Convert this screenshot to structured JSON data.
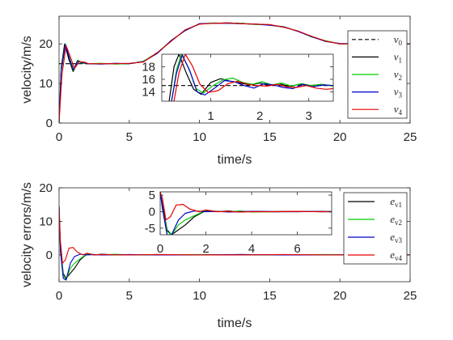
{
  "colors": {
    "v0": "#000000",
    "v1": "#000000",
    "v2": "#00cc00",
    "v3": "#0000cc",
    "v4": "#e60000",
    "axis": "#262626",
    "grid": "#d9d9d9"
  },
  "chart_data": [
    {
      "id": "velocity",
      "type": "line",
      "xlabel": "time/s",
      "ylabel": "velocity/m/s",
      "xlim": [
        0,
        25
      ],
      "ylim": [
        0,
        27
      ],
      "xticks": [
        "0",
        "5",
        "10",
        "15",
        "20",
        "25"
      ],
      "yticks": [
        "0",
        "10",
        "20"
      ],
      "legend_position": "right",
      "legend": [
        {
          "name": "v",
          "sub": "0",
          "style": "dashed"
        },
        {
          "name": "v",
          "sub": "1"
        },
        {
          "name": "v",
          "sub": "2"
        },
        {
          "name": "v",
          "sub": "3"
        },
        {
          "name": "v",
          "sub": "4"
        }
      ],
      "series": [
        {
          "key": "v0",
          "style": "dashed",
          "x": [
            0,
            0.2,
            0.5,
            0.8,
            1,
            1.5,
            2,
            3,
            4,
            5,
            6,
            7,
            8,
            9,
            10,
            11,
            12,
            13,
            14,
            15,
            16,
            17,
            18,
            19,
            20,
            21,
            22,
            23,
            24,
            25
          ],
          "y": [
            15,
            15,
            15,
            15,
            15,
            15,
            15,
            15,
            15,
            15,
            15.6,
            17.8,
            20.8,
            23.5,
            25,
            25.2,
            25.3,
            25.2,
            25,
            24.8,
            24.3,
            23.2,
            21.8,
            20.7,
            20,
            20,
            20,
            20,
            20,
            20
          ]
        },
        {
          "key": "v1",
          "x": [
            0,
            0.15,
            0.4,
            0.7,
            1,
            1.3,
            1.6,
            2,
            3,
            4,
            5,
            6,
            7,
            8,
            9,
            10,
            11,
            12,
            13,
            14,
            15,
            16,
            17,
            18,
            19,
            20,
            21,
            22,
            23,
            24,
            25
          ],
          "y": [
            0,
            14,
            20,
            16,
            13,
            15.8,
            15.2,
            15,
            15,
            15,
            15,
            15.5,
            17.7,
            20.9,
            23.4,
            25.1,
            25.2,
            25.3,
            25.1,
            25,
            24.8,
            24.3,
            23.2,
            21.8,
            20.7,
            20,
            20.1,
            20,
            20,
            20,
            20
          ]
        },
        {
          "key": "v2",
          "x": [
            0,
            0.15,
            0.45,
            0.75,
            1.05,
            1.35,
            1.7,
            2,
            3,
            4,
            5,
            6,
            7,
            8,
            9,
            10,
            11,
            12,
            13,
            14,
            15,
            16,
            17,
            18,
            19,
            20,
            21,
            22,
            23,
            24,
            25
          ],
          "y": [
            0,
            13.5,
            20,
            16.5,
            13.2,
            15.9,
            15.1,
            15,
            15.1,
            14.9,
            15,
            15.6,
            17.8,
            20.8,
            23.5,
            25,
            25.3,
            25.2,
            25.2,
            24.9,
            24.8,
            24.2,
            23.3,
            21.7,
            20.8,
            20,
            20,
            20.1,
            20,
            20,
            20
          ]
        },
        {
          "key": "v3",
          "x": [
            0,
            0.15,
            0.45,
            0.75,
            1.05,
            1.35,
            1.7,
            2,
            3,
            4,
            5,
            6,
            7,
            8,
            9,
            10,
            11,
            12,
            13,
            14,
            15,
            16,
            17,
            18,
            19,
            20,
            21,
            22,
            23,
            24,
            25
          ],
          "y": [
            0,
            13,
            19.8,
            16.2,
            13.4,
            15.6,
            15.3,
            15,
            14.9,
            15.1,
            15,
            15.5,
            17.6,
            20.9,
            23.4,
            25.1,
            25.2,
            25.2,
            25.1,
            25,
            24.7,
            24.3,
            23.2,
            21.8,
            20.6,
            20.1,
            20,
            20,
            20.1,
            20,
            20
          ]
        },
        {
          "key": "v4",
          "x": [
            0,
            0.2,
            0.5,
            0.8,
            1.1,
            1.45,
            1.8,
            2.1,
            3,
            4,
            5,
            6,
            7,
            8,
            9,
            10,
            11,
            12,
            13,
            14,
            15,
            16,
            17,
            18,
            19,
            20,
            21,
            22,
            23,
            24,
            25
          ],
          "y": [
            0,
            12,
            19.6,
            16.8,
            13.8,
            15.5,
            15.4,
            15,
            15,
            15,
            15.1,
            15.4,
            17.8,
            20.7,
            23.6,
            25,
            25.2,
            25.3,
            25.1,
            25,
            24.9,
            24.2,
            23.3,
            21.9,
            20.7,
            20,
            20,
            20,
            20,
            20.1,
            20
          ]
        }
      ],
      "inset": {
        "xlim": [
          0,
          3.5
        ],
        "ylim": [
          12.5,
          20
        ],
        "xticks": [
          "1",
          "2",
          "3"
        ],
        "yticks": [
          "14",
          "16",
          "18"
        ],
        "series": [
          {
            "key": "v0",
            "style": "dashed",
            "x": [
              0,
              3.5
            ],
            "y": [
              15,
              15
            ]
          },
          {
            "key": "v1",
            "x": [
              0.15,
              0.25,
              0.35,
              0.5,
              0.65,
              0.8,
              1,
              1.2,
              1.4,
              1.6,
              1.8,
              2,
              2.2,
              2.4,
              2.6,
              2.8,
              3,
              3.2,
              3.5
            ],
            "y": [
              12.5,
              18,
              20,
              17,
              14.4,
              13.6,
              15.5,
              16.1,
              15.7,
              15.4,
              15.1,
              15.4,
              15,
              15.3,
              14.8,
              15.2,
              15,
              15.1,
              15
            ]
          },
          {
            "key": "v2",
            "x": [
              0.2,
              0.3,
              0.4,
              0.55,
              0.7,
              0.85,
              1.05,
              1.25,
              1.45,
              1.65,
              1.85,
              2.05,
              2.25,
              2.45,
              2.65,
              2.85,
              3.05,
              3.25,
              3.5
            ],
            "y": [
              12.5,
              17.5,
              20,
              17.8,
              14.5,
              13.8,
              15,
              15.9,
              16.2,
              15.5,
              15.2,
              15.6,
              15.1,
              15.4,
              14.9,
              15.3,
              15,
              15.2,
              14.9
            ]
          },
          {
            "key": "v3",
            "x": [
              0.2,
              0.3,
              0.42,
              0.58,
              0.72,
              0.88,
              1.08,
              1.28,
              1.48,
              1.68,
              1.88,
              2.08,
              2.28,
              2.48,
              2.68,
              2.88,
              3.08,
              3.3,
              3.5
            ],
            "y": [
              12.5,
              17,
              19.9,
              17.2,
              14,
              13.5,
              14.6,
              15.8,
              15.6,
              15,
              14.6,
              15.3,
              15.1,
              14.7,
              14.5,
              15.2,
              14.8,
              15.1,
              15
            ]
          },
          {
            "key": "v4",
            "x": [
              0.25,
              0.35,
              0.48,
              0.62,
              0.78,
              0.95,
              1.15,
              1.35,
              1.55,
              1.75,
              1.95,
              2.15,
              2.35,
              2.55,
              2.75,
              2.95,
              3.15,
              3.35,
              3.5
            ],
            "y": [
              12.5,
              17,
              20,
              18.2,
              15.2,
              13.9,
              14.2,
              15.3,
              15.7,
              15.2,
              15,
              14.9,
              15.2,
              14.8,
              14.7,
              15,
              14.6,
              14.4,
              14.5
            ]
          }
        ]
      }
    },
    {
      "id": "errors",
      "type": "line",
      "xlabel": "time/s",
      "ylabel": "velocity errors/m/s",
      "xlim": [
        0,
        25
      ],
      "ylim": [
        -8,
        20
      ],
      "xticks": [
        "0",
        "5",
        "10",
        "15",
        "20",
        "25"
      ],
      "yticks": [
        "0",
        "10",
        "20"
      ],
      "legend_position": "right",
      "legend": [
        {
          "name": "e",
          "sub": "v1"
        },
        {
          "name": "e",
          "sub": "v2"
        },
        {
          "name": "e",
          "sub": "v3"
        },
        {
          "name": "e",
          "sub": "v4"
        }
      ],
      "series": [
        {
          "key": "v1",
          "x": [
            0,
            0.1,
            0.3,
            0.5,
            0.8,
            1.1,
            1.5,
            2,
            2.5,
            3,
            4,
            5,
            7,
            10,
            13,
            16,
            19,
            22,
            25
          ],
          "y": [
            14.5,
            2,
            -5.5,
            -7,
            -5.5,
            -4,
            -1.5,
            0.3,
            0,
            0.2,
            0,
            0,
            0.1,
            0,
            0.1,
            0,
            0,
            0,
            0
          ]
        },
        {
          "key": "v2",
          "x": [
            0,
            0.1,
            0.3,
            0.5,
            0.8,
            1.1,
            1.5,
            2,
            2.5,
            3,
            4,
            5,
            7,
            10,
            13,
            16,
            19,
            22,
            25
          ],
          "y": [
            14.5,
            1,
            -6,
            -7.5,
            -4,
            -2.5,
            -1.2,
            0.4,
            0.1,
            0,
            0.2,
            0,
            0,
            0.1,
            0,
            0,
            0.1,
            0,
            0
          ]
        },
        {
          "key": "v3",
          "x": [
            0,
            0.1,
            0.3,
            0.5,
            0.8,
            1.1,
            1.5,
            2,
            2.5,
            3,
            4,
            5,
            7,
            10,
            13,
            16,
            19,
            22,
            25
          ],
          "y": [
            14.5,
            1,
            -7,
            -7.5,
            -2.5,
            -0.5,
            0.2,
            0,
            0.1,
            0,
            0,
            0.1,
            0,
            0,
            0.1,
            0,
            0,
            0.1,
            0
          ]
        },
        {
          "key": "v4",
          "x": [
            0,
            0.1,
            0.25,
            0.45,
            0.7,
            1,
            1.3,
            1.7,
            2,
            2.5,
            3,
            4,
            5,
            7,
            10,
            13,
            16,
            19,
            22,
            25
          ],
          "y": [
            14.5,
            4,
            -2.5,
            -1.5,
            2,
            2.2,
            0.8,
            0,
            0.5,
            0,
            0.1,
            0,
            0,
            0.1,
            0,
            0,
            0.1,
            0,
            0,
            0
          ]
        }
      ],
      "inset": {
        "xlim": [
          0,
          7.5
        ],
        "ylim": [
          -7,
          6
        ],
        "xticks": [
          "0",
          "2",
          "4",
          "6"
        ],
        "yticks": [
          "-5",
          "0",
          "5"
        ],
        "series": [
          {
            "key": "v1",
            "x": [
              0,
              0.1,
              0.3,
              0.5,
              0.8,
              1.1,
              1.5,
              2,
              2.5,
              3,
              3.5,
              4,
              5,
              6,
              7,
              7.5
            ],
            "y": [
              6,
              2,
              -5.5,
              -7,
              -5.5,
              -4,
              -1.5,
              0.3,
              0,
              0.2,
              -0.1,
              0.1,
              0,
              0.1,
              0,
              0
            ]
          },
          {
            "key": "v2",
            "x": [
              0,
              0.1,
              0.3,
              0.5,
              0.8,
              1.1,
              1.5,
              2,
              2.5,
              3,
              3.5,
              4,
              5,
              6,
              7,
              7.5
            ],
            "y": [
              6,
              1,
              -6,
              -7,
              -4,
              -2.5,
              -1.2,
              0.4,
              0.1,
              0,
              0.2,
              -0.1,
              0,
              0,
              0.1,
              0
            ]
          },
          {
            "key": "v3",
            "x": [
              0,
              0.1,
              0.3,
              0.5,
              0.8,
              1.1,
              1.5,
              2,
              2.5,
              3,
              3.5,
              4,
              5,
              6,
              7,
              7.5
            ],
            "y": [
              6,
              1,
              -7,
              -7,
              -2.5,
              -0.5,
              0.2,
              0,
              0.1,
              -0.1,
              0,
              0.1,
              0,
              0,
              0.1,
              0
            ]
          },
          {
            "key": "v4",
            "x": [
              0,
              0.1,
              0.25,
              0.45,
              0.7,
              1,
              1.3,
              1.7,
              2,
              2.5,
              3,
              3.5,
              4,
              5,
              6,
              7,
              7.5
            ],
            "y": [
              6,
              4,
              -2.5,
              -1.5,
              2,
              2.2,
              0.8,
              0,
              0.5,
              0,
              0.1,
              -0.1,
              0,
              0,
              0.1,
              0,
              0
            ]
          }
        ]
      }
    }
  ]
}
